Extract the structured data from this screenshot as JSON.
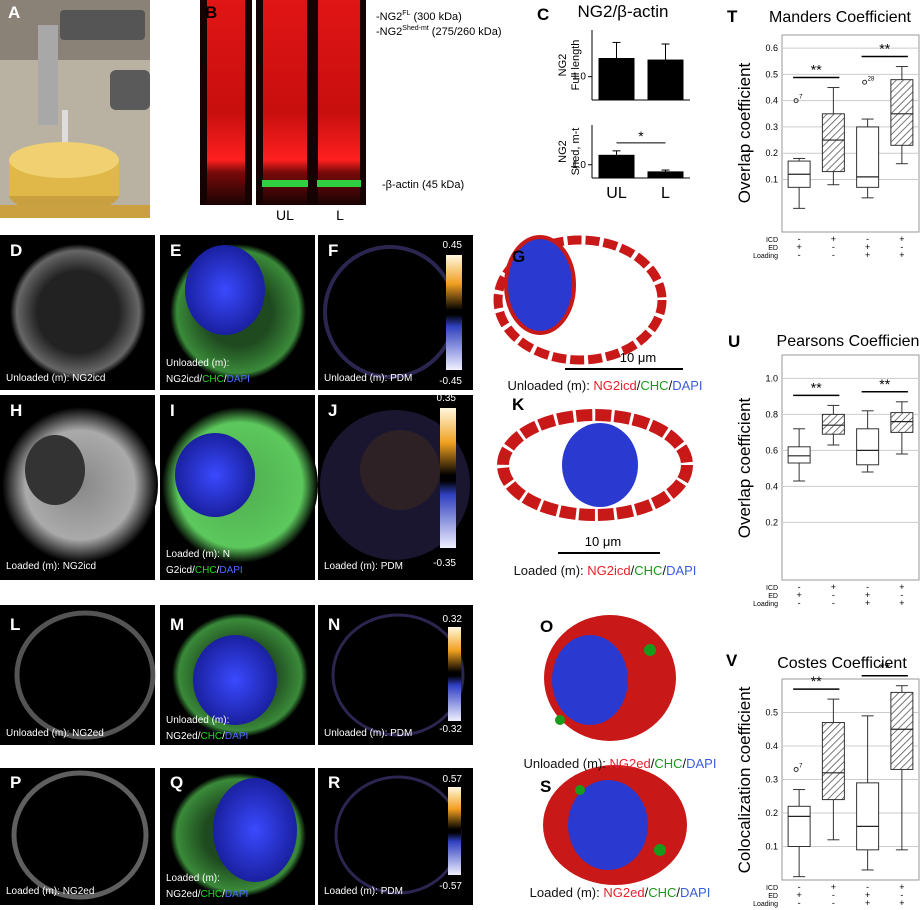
{
  "letters": [
    "A",
    "B",
    "C",
    "D",
    "E",
    "F",
    "G",
    "H",
    "I",
    "J",
    "K",
    "L",
    "M",
    "N",
    "O",
    "P",
    "Q",
    "R",
    "S",
    "T",
    "U",
    "V"
  ],
  "gel": {
    "band1": {
      "prefix": "-NG2",
      "sup": "FL",
      "size": " (300 kDa)"
    },
    "band2": {
      "prefix": "-NG2",
      "sup": "Shed-mt",
      "size": " (275/260 kDa)"
    },
    "actin": "-β-actin  (45 kDa)",
    "lanes": [
      "UL",
      "L"
    ]
  },
  "images": {
    "D": {
      "caption": [
        [
          {
            "text": "Unloaded (m): NG2icd",
            "color": "#ffffff"
          }
        ]
      ]
    },
    "E": {
      "caption": [
        [
          {
            "text": "Unloaded (m):",
            "color": "#ffffff"
          }
        ],
        [
          {
            "text": "NG2icd",
            "color": "#ffffff"
          },
          {
            "text": "/",
            "color": "#ffffff"
          },
          {
            "text": "CHC",
            "color": "#22dd22"
          },
          {
            "text": "/",
            "color": "#ffffff"
          },
          {
            "text": "DAPI",
            "color": "#4a6cff"
          }
        ]
      ]
    },
    "F": {
      "caption": [
        [
          {
            "text": "Unloaded (m): PDM",
            "color": "#ffffff"
          }
        ]
      ],
      "colorbar": {
        "max": "0.45",
        "min": "-0.45"
      }
    },
    "G": {
      "caption": [
        [
          {
            "text": "Unloaded (m): ",
            "color": "#111111"
          },
          {
            "text": "NG2icd",
            "color": "#e8202a"
          },
          {
            "text": "/",
            "color": "#111111"
          },
          {
            "text": "CHC",
            "color": "#1a9a1a"
          },
          {
            "text": "/",
            "color": "#111111"
          },
          {
            "text": "DAPI",
            "color": "#3a5ce0"
          }
        ]
      ],
      "scale": "10 μm"
    },
    "H": {
      "caption": [
        [
          {
            "text": "Loaded (m): NG2icd",
            "color": "#ffffff"
          }
        ]
      ]
    },
    "I": {
      "caption": [
        [
          {
            "text": "Loaded (m): N",
            "color": "#ffffff"
          }
        ],
        [
          {
            "text": "G2icd",
            "color": "#ffffff"
          },
          {
            "text": "/",
            "color": "#ffffff"
          },
          {
            "text": "CHC",
            "color": "#22dd22"
          },
          {
            "text": "/",
            "color": "#ffffff"
          },
          {
            "text": "DAPI",
            "color": "#4a6cff"
          }
        ]
      ]
    },
    "J": {
      "caption": [
        [
          {
            "text": "Loaded (m): PDM",
            "color": "#ffffff"
          }
        ]
      ],
      "colorbar": {
        "max": "0.35",
        "min": "-0.35"
      }
    },
    "K": {
      "caption": [
        [
          {
            "text": "Loaded (m): ",
            "color": "#111111"
          },
          {
            "text": "NG2icd",
            "color": "#e8202a"
          },
          {
            "text": "/",
            "color": "#111111"
          },
          {
            "text": "CHC",
            "color": "#1a9a1a"
          },
          {
            "text": "/",
            "color": "#111111"
          },
          {
            "text": "DAPI",
            "color": "#3a5ce0"
          }
        ]
      ],
      "scale": "10 μm"
    },
    "L": {
      "caption": [
        [
          {
            "text": "Unloaded (m): NG2ed",
            "color": "#ffffff"
          }
        ]
      ]
    },
    "M": {
      "caption": [
        [
          {
            "text": "Unloaded (m):",
            "color": "#ffffff"
          }
        ],
        [
          {
            "text": "NG2ed",
            "color": "#ffffff"
          },
          {
            "text": "/",
            "color": "#ffffff"
          },
          {
            "text": "CHC",
            "color": "#22dd22"
          },
          {
            "text": "/",
            "color": "#ffffff"
          },
          {
            "text": "DAPI",
            "color": "#4a6cff"
          }
        ]
      ]
    },
    "N": {
      "caption": [
        [
          {
            "text": "Unloaded (m): PDM",
            "color": "#ffffff"
          }
        ]
      ],
      "colorbar": {
        "max": "0.32",
        "min": "-0.32"
      }
    },
    "O": {
      "caption": [
        [
          {
            "text": "Unloaded (m): ",
            "color": "#111111"
          },
          {
            "text": "NG2ed",
            "color": "#e8202a"
          },
          {
            "text": "/",
            "color": "#111111"
          },
          {
            "text": "CHC",
            "color": "#1a9a1a"
          },
          {
            "text": "/",
            "color": "#111111"
          },
          {
            "text": "DAPI",
            "color": "#3a5ce0"
          }
        ]
      ]
    },
    "P": {
      "caption": [
        [
          {
            "text": "Loaded (m): NG2ed",
            "color": "#ffffff"
          }
        ]
      ]
    },
    "Q": {
      "caption": [
        [
          {
            "text": "Loaded (m):",
            "color": "#ffffff"
          }
        ],
        [
          {
            "text": "NG2ed",
            "color": "#ffffff"
          },
          {
            "text": "/",
            "color": "#ffffff"
          },
          {
            "text": "CHC",
            "color": "#22dd22"
          },
          {
            "text": "/",
            "color": "#ffffff"
          },
          {
            "text": "DAPI",
            "color": "#4a6cff"
          }
        ]
      ]
    },
    "R": {
      "caption": [
        [
          {
            "text": "Loaded (m): PDM",
            "color": "#ffffff"
          }
        ]
      ],
      "colorbar": {
        "max": "0.57",
        "min": "-0.57"
      }
    },
    "S": {
      "caption": [
        [
          {
            "text": "Loaded (m): ",
            "color": "#111111"
          },
          {
            "text": "NG2ed",
            "color": "#e8202a"
          },
          {
            "text": "/",
            "color": "#111111"
          },
          {
            "text": "CHC",
            "color": "#1a9a1a"
          },
          {
            "text": "/",
            "color": "#111111"
          },
          {
            "text": "DAPI",
            "color": "#3a5ce0"
          }
        ]
      ]
    }
  },
  "chart_data": [
    {
      "type": "bar",
      "title": "NG2/β-actin",
      "ylabel": [
        "NG2",
        "Full length"
      ],
      "categories": [
        null,
        null
      ],
      "values": [
        1.24,
        1.22
      ],
      "errors": [
        0.2,
        0.2
      ],
      "color": "#000000",
      "ylim": [
        0.7,
        1.6
      ],
      "yticks": [
        {
          "value": 1,
          "label": "1.0"
        }
      ]
    },
    {
      "type": "bar",
      "ylabel": [
        "NG2",
        "Shed, m-t"
      ],
      "categories": [
        "UL",
        "L"
      ],
      "values": [
        1.15,
        0.9
      ],
      "errors": [
        0.06,
        0.02
      ],
      "color": "#000000",
      "ylim": [
        0.8,
        1.6
      ],
      "yticks": [
        {
          "value": 1,
          "label": "1.0"
        }
      ],
      "annotations": [
        {
          "text": "*",
          "from": 0,
          "to": 1
        }
      ]
    },
    {
      "type": "box",
      "title": "Manders Coefficient",
      "ylabel": "Overlap coefficient",
      "ylim": [
        -0.1,
        0.65
      ],
      "yticks": [
        0.1,
        0.2,
        0.3,
        0.4,
        0.5,
        0.6
      ],
      "grid": true,
      "hatched": [
        false,
        true,
        false,
        true
      ],
      "boxes": [
        {
          "whislo": -0.01,
          "q1": 0.07,
          "med": 0.12,
          "q3": 0.17,
          "whishi": 0.18,
          "outliers": [
            0.4
          ],
          "outlier_labels": [
            "7"
          ]
        },
        {
          "whislo": 0.08,
          "q1": 0.13,
          "med": 0.25,
          "q3": 0.35,
          "whishi": 0.45
        },
        {
          "whislo": 0.03,
          "q1": 0.07,
          "med": 0.11,
          "q3": 0.3,
          "whishi": 0.33,
          "outliers": [
            0.47
          ],
          "outlier_labels": [
            "28"
          ]
        },
        {
          "whislo": 0.16,
          "q1": 0.23,
          "med": 0.35,
          "q3": 0.48,
          "whishi": 0.53
        }
      ],
      "conditions": {
        "labels": [
          "ICD",
          "ED",
          "Loading"
        ],
        "rows": [
          [
            "-",
            "+",
            "-",
            "+"
          ],
          [
            "+",
            "-",
            "+",
            "-"
          ],
          [
            "-",
            "-",
            "+",
            "+"
          ]
        ]
      },
      "annotations": [
        {
          "text": "**",
          "from": 0,
          "to": 1
        },
        {
          "text": "**",
          "from": 2,
          "to": 3
        }
      ]
    },
    {
      "type": "box",
      "title": "Pearsons Coefficien",
      "ylabel": "Overlap coefficient",
      "ylim": [
        -0.12,
        1.13
      ],
      "yticks": [
        {
          "value": 0.2,
          "label": "0.2"
        },
        {
          "value": 0.4,
          "label": "0.4"
        },
        {
          "value": 0.6,
          "label": "0.6"
        },
        {
          "value": 0.8,
          "label": "0.8"
        },
        {
          "value": 1,
          "label": "1.0"
        }
      ],
      "grid": true,
      "hatched": [
        false,
        true,
        false,
        true
      ],
      "boxes": [
        {
          "whislo": 0.43,
          "q1": 0.53,
          "med": 0.57,
          "q3": 0.62,
          "whishi": 0.72
        },
        {
          "whislo": 0.63,
          "q1": 0.69,
          "med": 0.74,
          "q3": 0.8,
          "whishi": 0.85
        },
        {
          "whislo": 0.48,
          "q1": 0.52,
          "med": 0.6,
          "q3": 0.72,
          "whishi": 0.82
        },
        {
          "whislo": 0.58,
          "q1": 0.7,
          "med": 0.76,
          "q3": 0.81,
          "whishi": 0.87
        }
      ],
      "conditions": {
        "labels": [
          "ICD",
          "ED",
          "Loading"
        ],
        "rows": [
          [
            "-",
            "+",
            "-",
            "+"
          ],
          [
            "+",
            "-",
            "+",
            "-"
          ],
          [
            "-",
            "-",
            "+",
            "+"
          ]
        ]
      },
      "annotations": [
        {
          "text": "**",
          "from": 0,
          "to": 1
        },
        {
          "text": "**",
          "from": 2,
          "to": 3
        }
      ]
    },
    {
      "type": "box",
      "title": "Costes Coefficient",
      "ylabel": "Colocalization coefficient",
      "ylim": [
        0,
        0.6
      ],
      "yticks": [
        0.1,
        0.2,
        0.3,
        0.4,
        0.5
      ],
      "grid": true,
      "hatched": [
        false,
        true,
        false,
        true
      ],
      "boxes": [
        {
          "whislo": 0.01,
          "q1": 0.1,
          "med": 0.19,
          "q3": 0.22,
          "whishi": 0.27,
          "outliers": [
            0.33
          ],
          "outlier_labels": [
            "7"
          ]
        },
        {
          "whislo": 0.12,
          "q1": 0.24,
          "med": 0.32,
          "q3": 0.47,
          "whishi": 0.54
        },
        {
          "whislo": 0.03,
          "q1": 0.09,
          "med": 0.16,
          "q3": 0.29,
          "whishi": 0.49
        },
        {
          "whislo": 0.09,
          "q1": 0.33,
          "med": 0.45,
          "q3": 0.56,
          "whishi": 0.58
        }
      ],
      "conditions": {
        "labels": [
          "ICD",
          "ED",
          "Loading"
        ],
        "rows": [
          [
            "-",
            "+",
            "-",
            "+"
          ],
          [
            "+",
            "-",
            "+",
            "-"
          ],
          [
            "-",
            "-",
            "+",
            "+"
          ]
        ]
      },
      "annotations": [
        {
          "text": "**",
          "from": 0,
          "to": 1
        },
        {
          "text": "**",
          "from": 2,
          "to": 3
        }
      ]
    }
  ]
}
